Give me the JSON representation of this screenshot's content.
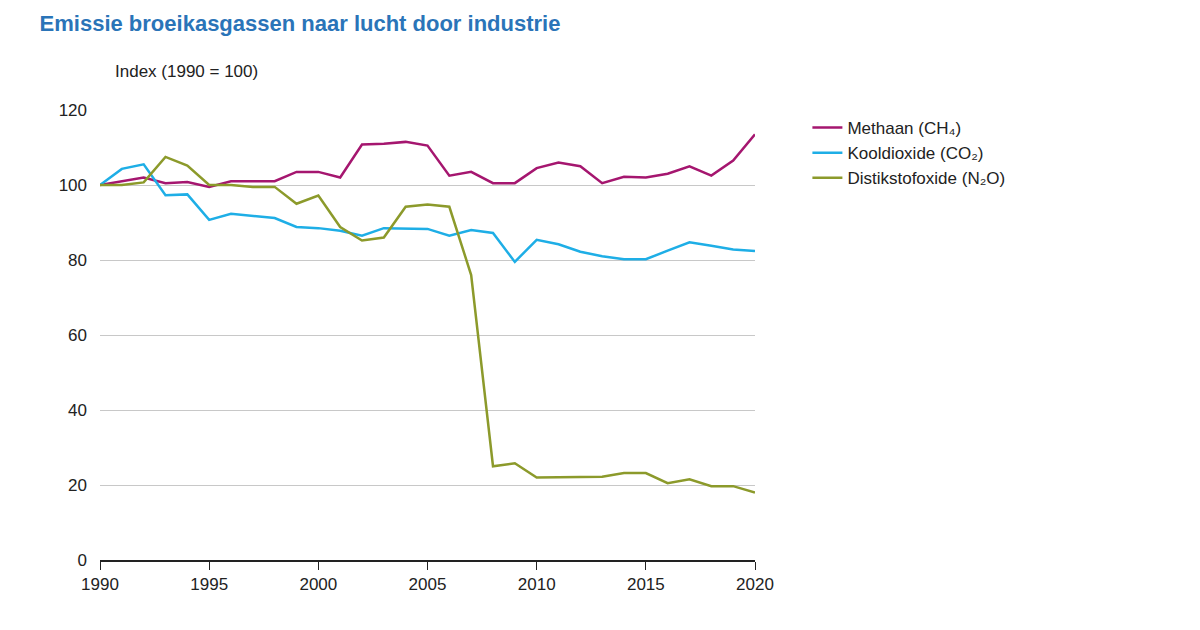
{
  "chart_data": {
    "type": "line",
    "title": "Emissie broeikasgassen naar lucht door industrie",
    "y_label": "Index (1990 = 100)",
    "x": [
      1990,
      1991,
      1992,
      1993,
      1994,
      1995,
      1996,
      1997,
      1998,
      1999,
      2000,
      2001,
      2002,
      2003,
      2004,
      2005,
      2006,
      2007,
      2008,
      2009,
      2010,
      2011,
      2012,
      2013,
      2014,
      2015,
      2016,
      2017,
      2018,
      2019,
      2020
    ],
    "series": [
      {
        "name": "Methaan (CH₄)",
        "color": "#a5166f",
        "values": [
          100,
          101,
          102,
          100.5,
          100.8,
          99.5,
          101,
          101,
          101,
          103.5,
          103.5,
          102,
          110.8,
          111,
          111.5,
          110.5,
          102.5,
          103.5,
          100.5,
          100.5,
          104.5,
          106,
          105,
          100.5,
          102.2,
          102,
          103,
          105,
          102.5,
          106.5,
          113.5
        ]
      },
      {
        "name": "Kooldioxide (CO₂)",
        "color": "#1eaee6",
        "values": [
          100,
          104.3,
          105.5,
          97.3,
          97.5,
          90.7,
          92.3,
          91.7,
          91.2,
          88.8,
          88.5,
          87.8,
          86.5,
          88.5,
          88.5,
          88.3,
          86.5,
          88,
          87.2,
          79.5,
          85.4,
          84.2,
          82.2,
          81,
          80.2,
          80.2,
          82.5,
          84.7,
          83.8,
          82.8,
          82.4
        ]
      },
      {
        "name": "Distikstofoxide (N₂O)",
        "color": "#8c9a2b",
        "values": [
          100,
          100,
          100.7,
          107.5,
          105.2,
          100,
          100,
          99.5,
          99.5,
          95,
          97.2,
          88.8,
          85.2,
          86,
          94.2,
          94.8,
          94.2,
          76,
          25,
          25.8,
          22,
          22,
          22.2,
          22.2,
          23.2,
          23.2,
          20.5,
          21.5,
          19.7,
          19.7,
          18
        ]
      }
    ],
    "xlim": [
      1990,
      2020
    ],
    "xticks": [
      1990,
      1995,
      2000,
      2005,
      2010,
      2015,
      2020
    ],
    "ylim": [
      0,
      120
    ],
    "yticks": [
      0,
      20,
      40,
      60,
      80,
      100,
      120
    ],
    "grid": true,
    "legend": "right"
  }
}
